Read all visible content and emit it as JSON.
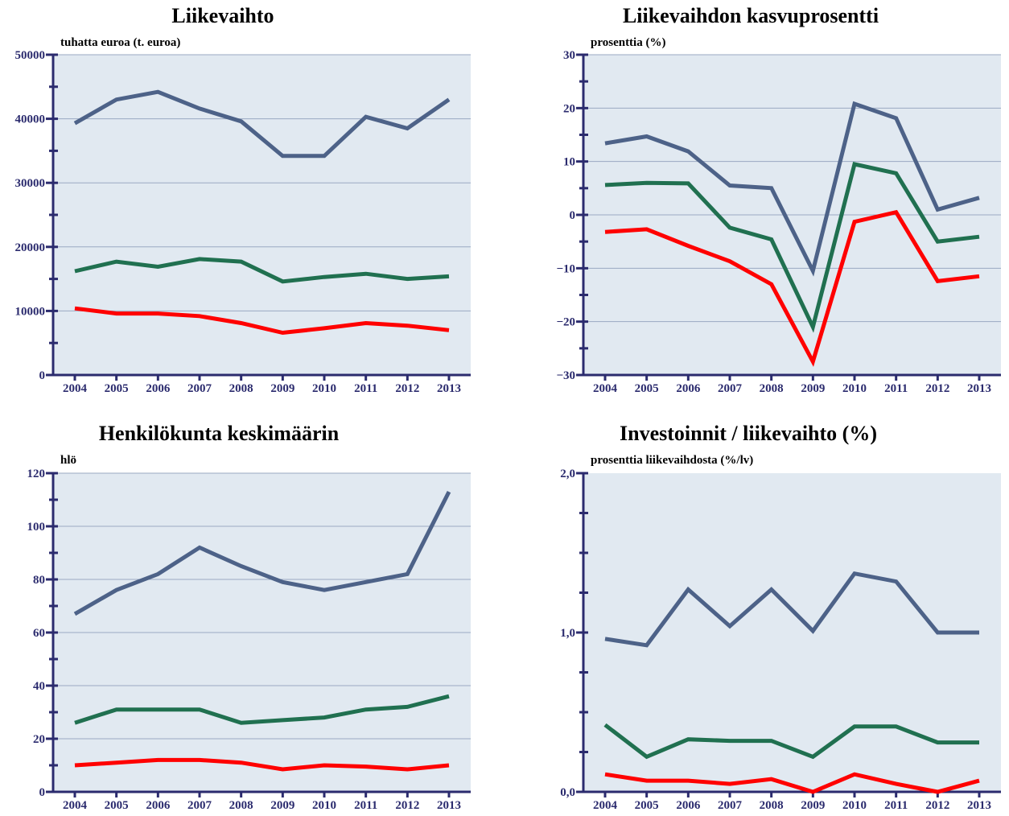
{
  "colors": {
    "plot_bg": "#e1e9f1",
    "grid": "#9aa9c2",
    "axis": "#2b2b6e",
    "series": [
      "#4d6288",
      "#207050",
      "#ff0000"
    ]
  },
  "chart_data": [
    {
      "type": "line",
      "title": "Liikevaihto",
      "ylabel": "tuhatta euroa (t. euroa)",
      "xlabel": "",
      "x": [
        "2004",
        "2005",
        "2006",
        "2007",
        "2008",
        "2009",
        "2010",
        "2011",
        "2012",
        "2013"
      ],
      "ylim": [
        0,
        50000
      ],
      "yticks": [
        0,
        10000,
        20000,
        30000,
        40000,
        50000
      ],
      "ytick_labels": [
        "0",
        "10000",
        "20000",
        "30000",
        "40000",
        "50000"
      ],
      "grid": true,
      "series": [
        {
          "name": "series-1",
          "values": [
            39300,
            43000,
            44200,
            41600,
            39600,
            34200,
            34200,
            40300,
            38500,
            43000
          ]
        },
        {
          "name": "series-2",
          "values": [
            16200,
            17700,
            16900,
            18100,
            17700,
            14600,
            15300,
            15800,
            15000,
            15400
          ]
        },
        {
          "name": "series-3",
          "values": [
            10400,
            9600,
            9600,
            9200,
            8100,
            6600,
            7300,
            8100,
            7700,
            7000
          ]
        }
      ]
    },
    {
      "type": "line",
      "title": "Liikevaihdon kasvuprosentti",
      "ylabel": "prosenttia (%)",
      "xlabel": "",
      "x": [
        "2004",
        "2005",
        "2006",
        "2007",
        "2008",
        "2009",
        "2010",
        "2011",
        "2012",
        "2013"
      ],
      "ylim": [
        -30,
        30
      ],
      "yticks": [
        -30,
        -20,
        -10,
        0,
        10,
        20,
        30
      ],
      "ytick_labels": [
        "−30",
        "−20",
        "−10",
        "0",
        "10",
        "20",
        "30"
      ],
      "grid": true,
      "series": [
        {
          "name": "series-1",
          "values": [
            13.4,
            14.7,
            11.9,
            5.5,
            5.0,
            -10.5,
            20.8,
            18.1,
            1.0,
            3.2
          ]
        },
        {
          "name": "series-2",
          "values": [
            5.6,
            6.0,
            5.9,
            -2.4,
            -4.6,
            -21.0,
            9.5,
            7.8,
            -5.0,
            -4.1
          ]
        },
        {
          "name": "series-3",
          "values": [
            -3.2,
            -2.7,
            -5.8,
            -8.7,
            -13.0,
            -27.5,
            -1.3,
            0.5,
            -12.4,
            -11.5
          ]
        }
      ]
    },
    {
      "type": "line",
      "title": "Henkilökunta keskimäärin",
      "ylabel": "hlö",
      "xlabel": "",
      "x": [
        "2004",
        "2005",
        "2006",
        "2007",
        "2008",
        "2009",
        "2010",
        "2011",
        "2012",
        "2013"
      ],
      "ylim": [
        0,
        120
      ],
      "yticks": [
        0,
        20,
        40,
        60,
        80,
        100,
        120
      ],
      "ytick_labels": [
        "0",
        "20",
        "40",
        "60",
        "80",
        "100",
        "120"
      ],
      "grid": true,
      "series": [
        {
          "name": "series-1",
          "values": [
            67,
            76,
            82,
            92,
            85,
            79,
            76,
            79,
            82,
            113
          ]
        },
        {
          "name": "series-2",
          "values": [
            26,
            31,
            31,
            31,
            26,
            27,
            28,
            31,
            32,
            36
          ]
        },
        {
          "name": "series-3",
          "values": [
            10,
            11,
            12,
            12,
            11,
            8.5,
            10,
            9.5,
            8.5,
            10
          ]
        }
      ]
    },
    {
      "type": "line",
      "title": "Investoinnit / liikevaihto (%)",
      "ylabel": "prosenttia liikevaihdosta (%/lv)",
      "xlabel": "",
      "x": [
        "2004",
        "2005",
        "2006",
        "2007",
        "2008",
        "2009",
        "2010",
        "2011",
        "2012",
        "2013"
      ],
      "ylim": [
        0,
        2
      ],
      "yticks": [
        0,
        1,
        2
      ],
      "ytick_labels": [
        "0,0",
        "1,0",
        "2,0"
      ],
      "grid": false,
      "series": [
        {
          "name": "series-1",
          "values": [
            0.96,
            0.92,
            1.27,
            1.04,
            1.27,
            1.01,
            1.37,
            1.32,
            1.0,
            1.0
          ]
        },
        {
          "name": "series-2",
          "values": [
            0.42,
            0.22,
            0.33,
            0.32,
            0.32,
            0.22,
            0.41,
            0.41,
            0.31,
            0.31
          ]
        },
        {
          "name": "series-3",
          "values": [
            0.11,
            0.07,
            0.07,
            0.05,
            0.08,
            0.0,
            0.11,
            0.05,
            0.0,
            0.07
          ]
        }
      ]
    }
  ]
}
